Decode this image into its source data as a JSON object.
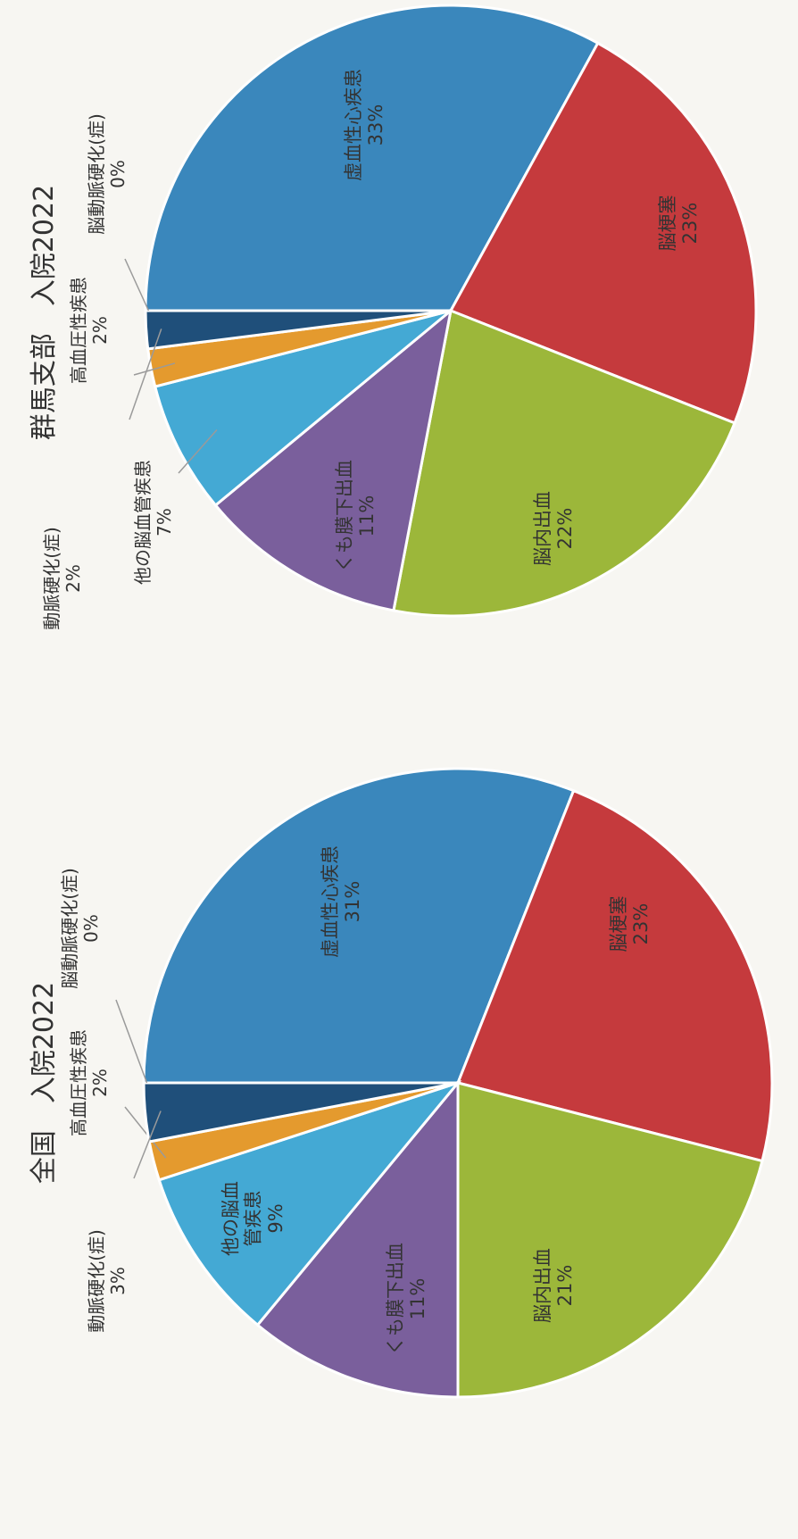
{
  "colors": {
    "ischemic_heart": "#3a87bc",
    "infarction": "#c53a3d",
    "hemorrhage": "#9cb73a",
    "subarachnoid": "#7a5f9c",
    "other_cerebro": "#44a9d4",
    "hypertension": "#e49a2e",
    "atherosclerosis": "#1f4f7a",
    "cerebral_arterio": "#8a8a8a",
    "background": "#f7f6f2"
  },
  "chart_data": [
    {
      "type": "pie",
      "title": "群馬支部　入院2022",
      "slices": [
        {
          "label": "虚血性心疾患",
          "value": 33,
          "value_label": "33%",
          "color_key": "ischemic_heart"
        },
        {
          "label": "脳梗塞",
          "value": 23,
          "value_label": "23%",
          "color_key": "infarction"
        },
        {
          "label": "脳内出血",
          "value": 22,
          "value_label": "22%",
          "color_key": "hemorrhage"
        },
        {
          "label": "くも膜下出血",
          "value": 11,
          "value_label": "11%",
          "color_key": "subarachnoid"
        },
        {
          "label": "他の脳血管疾患",
          "value": 7,
          "value_label": "7%",
          "color_key": "other_cerebro"
        },
        {
          "label": "高血圧性疾患",
          "value": 2,
          "value_label": "2%",
          "color_key": "hypertension"
        },
        {
          "label": "動脈硬化(症)",
          "value": 2,
          "value_label": "2%",
          "color_key": "atherosclerosis"
        },
        {
          "label": "脳動脈硬化(症)",
          "value": 0,
          "value_label": "0%",
          "color_key": "cerebral_arterio"
        }
      ]
    },
    {
      "type": "pie",
      "title": "全国　入院2022",
      "slices": [
        {
          "label": "虚血性心疾患",
          "value": 31,
          "value_label": "31%",
          "color_key": "ischemic_heart"
        },
        {
          "label": "脳梗塞",
          "value": 23,
          "value_label": "23%",
          "color_key": "infarction"
        },
        {
          "label": "脳内出血",
          "value": 21,
          "value_label": "21%",
          "color_key": "hemorrhage"
        },
        {
          "label": "くも膜下出血",
          "value": 11,
          "value_label": "11%",
          "color_key": "subarachnoid"
        },
        {
          "label": "他の脳血管疾患",
          "value": 9,
          "value_label": "9%",
          "color_key": "other_cerebro"
        },
        {
          "label": "高血圧性疾患",
          "value": 2,
          "value_label": "2%",
          "color_key": "hypertension"
        },
        {
          "label": "動脈硬化(症)",
          "value": 3,
          "value_label": "3%",
          "color_key": "atherosclerosis"
        },
        {
          "label": "脳動脈硬化(症)",
          "value": 0,
          "value_label": "0%",
          "color_key": "cerebral_arterio"
        }
      ]
    }
  ]
}
